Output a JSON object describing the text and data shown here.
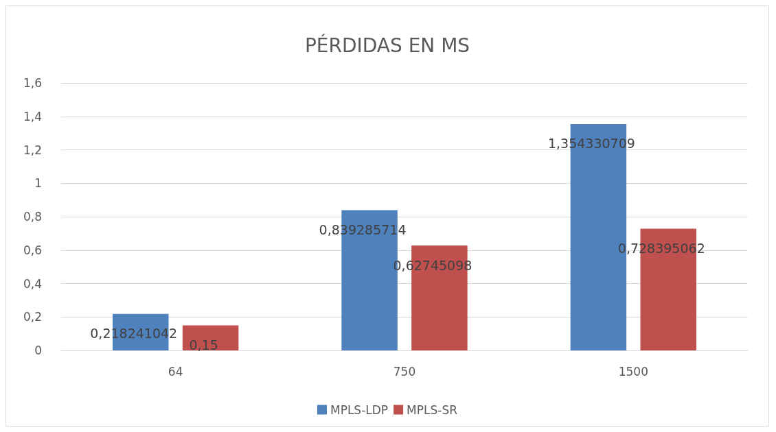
{
  "chart_data": {
    "type": "bar",
    "title": "PÉRDIDAS EN MS",
    "categories": [
      "64",
      "750",
      "1500"
    ],
    "series": [
      {
        "name": "MPLS-LDP",
        "color": "#4f81bd",
        "values": [
          0.218241042,
          0.839285714,
          1.354330709
        ],
        "value_labels": [
          "0,218241042",
          "0,839285714",
          "1,354330709"
        ]
      },
      {
        "name": "MPLS-SR",
        "color": "#c0504d",
        "values": [
          0.15,
          0.62745098,
          0.728395062
        ],
        "value_labels": [
          "0,15",
          "0,62745098",
          "0,728395062"
        ]
      }
    ],
    "ylim": [
      0,
      1.6
    ],
    "yticks": [
      0,
      {
        "value": 0.2,
        "label": "0,2"
      },
      {
        "value": 0.4,
        "label": "0,4"
      },
      {
        "value": 0.6,
        "label": "0,6"
      },
      {
        "value": 0.8,
        "label": "0,8"
      },
      1,
      {
        "value": 1.2,
        "label": "1,2"
      },
      {
        "value": 1.4,
        "label": "1,4"
      },
      {
        "value": 1.6,
        "label": "1,6"
      }
    ],
    "grid": "y",
    "legend": "bottom"
  }
}
